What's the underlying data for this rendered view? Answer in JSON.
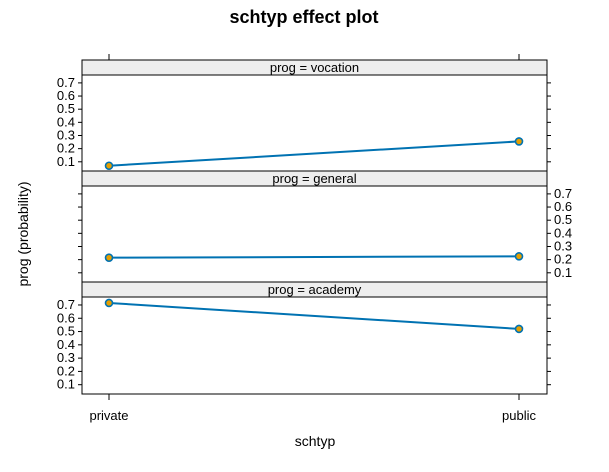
{
  "chart_data": {
    "type": "line",
    "title": "schtyp effect plot",
    "xlabel": "schtyp",
    "ylabel": "prog (probability)",
    "categories": [
      "private",
      "public"
    ],
    "y_ticks": [
      0.1,
      0.2,
      0.3,
      0.4,
      0.5,
      0.6,
      0.7
    ],
    "ylim": [
      0.03,
      0.76
    ],
    "grid": false,
    "line_color": "#0072b2",
    "marker_color": "#e69f00",
    "strip_fill": "#eeeeee",
    "panels": [
      {
        "strip": "prog = vocation",
        "values": [
          0.07,
          0.255
        ],
        "tick_side": "left"
      },
      {
        "strip": "prog = general",
        "values": [
          0.215,
          0.225
        ],
        "tick_side": "right"
      },
      {
        "strip": "prog = academy",
        "values": [
          0.715,
          0.52
        ],
        "tick_side": "left"
      }
    ]
  }
}
